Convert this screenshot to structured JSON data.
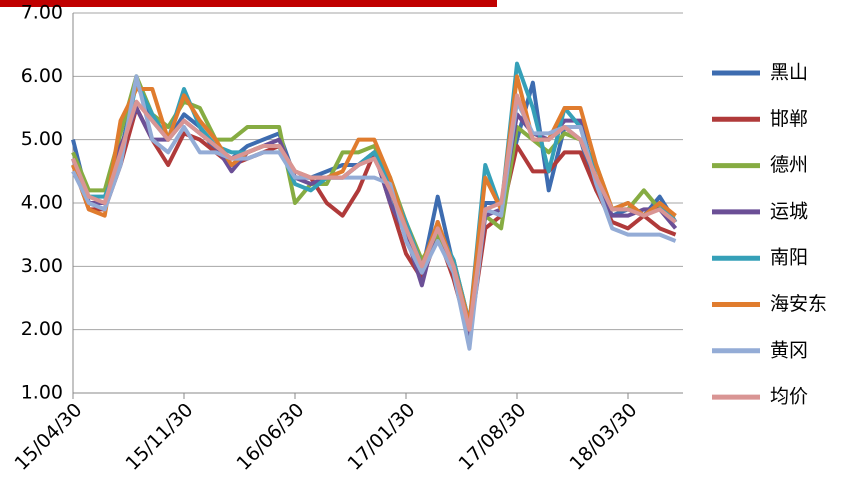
{
  "chart_data": {
    "type": "line",
    "categories": [
      "15/04/30",
      null,
      null,
      null,
      null,
      null,
      null,
      "15/11/30",
      null,
      null,
      null,
      null,
      null,
      null,
      "16/06/30",
      null,
      null,
      null,
      null,
      null,
      null,
      "17/01/30",
      null,
      null,
      null,
      null,
      null,
      null,
      "17/08/30",
      null,
      null,
      null,
      null,
      null,
      null,
      "18/03/30",
      null,
      null,
      null
    ],
    "ylim": [
      1,
      7
    ],
    "yticks": [
      {
        "value": 1,
        "label": "1.00"
      },
      {
        "value": 2,
        "label": "2.00"
      },
      {
        "value": 3,
        "label": "3.00"
      },
      {
        "value": 4,
        "label": "4.00"
      },
      {
        "value": 5,
        "label": "5.00"
      },
      {
        "value": 6,
        "label": "6.00"
      },
      {
        "value": 7,
        "label": "7.00"
      }
    ],
    "grid": true,
    "legend": "right",
    "series": [
      {
        "name": "黑山",
        "color": "#3d6cb0",
        "values": [
          5.0,
          4.0,
          3.9,
          4.8,
          5.9,
          5.3,
          5.0,
          5.4,
          5.2,
          4.8,
          4.7,
          4.9,
          5.0,
          5.1,
          4.4,
          4.4,
          4.5,
          4.6,
          4.6,
          4.8,
          4.2,
          3.5,
          2.9,
          4.1,
          3.0,
          1.8,
          4.0,
          4.0,
          5.0,
          5.9,
          4.2,
          5.2,
          5.0,
          4.2,
          3.8,
          3.9,
          3.8,
          4.1,
          3.7
        ]
      },
      {
        "name": "邯郸",
        "color": "#b03a3a",
        "values": [
          4.6,
          3.9,
          3.9,
          4.6,
          5.5,
          5.0,
          4.6,
          5.1,
          5.0,
          4.8,
          4.6,
          4.7,
          4.8,
          4.9,
          4.4,
          4.4,
          4.0,
          3.8,
          4.2,
          4.8,
          4.0,
          3.2,
          2.8,
          3.5,
          2.8,
          1.9,
          3.6,
          3.8,
          4.9,
          4.5,
          4.5,
          4.8,
          4.8,
          4.2,
          3.7,
          3.6,
          3.8,
          3.6,
          3.5
        ]
      },
      {
        "name": "德州",
        "color": "#86ac42",
        "values": [
          4.8,
          4.2,
          4.2,
          5.1,
          6.0,
          5.4,
          5.2,
          5.6,
          5.5,
          5.0,
          5.0,
          5.2,
          5.2,
          5.2,
          4.0,
          4.3,
          4.3,
          4.8,
          4.8,
          4.9,
          4.4,
          3.7,
          3.1,
          3.5,
          3.1,
          2.1,
          3.8,
          3.6,
          5.2,
          5.0,
          4.8,
          5.1,
          5.0,
          4.6,
          3.9,
          3.9,
          4.2,
          3.9,
          3.8
        ]
      },
      {
        "name": "运城",
        "color": "#6b4f96",
        "values": [
          4.7,
          4.0,
          4.0,
          4.9,
          5.5,
          5.0,
          5.0,
          5.3,
          5.1,
          4.9,
          4.5,
          4.8,
          4.9,
          5.0,
          4.4,
          4.3,
          4.4,
          4.4,
          4.6,
          4.8,
          4.0,
          3.5,
          2.7,
          3.7,
          2.9,
          1.9,
          3.8,
          3.9,
          5.4,
          5.1,
          5.0,
          5.3,
          5.3,
          4.3,
          3.8,
          3.8,
          3.9,
          3.9,
          3.6
        ]
      },
      {
        "name": "南阳",
        "color": "#35a0b8",
        "values": [
          4.6,
          4.1,
          4.1,
          4.7,
          5.9,
          5.4,
          5.0,
          5.8,
          5.2,
          4.9,
          4.8,
          4.8,
          4.9,
          4.9,
          4.3,
          4.2,
          4.4,
          4.4,
          4.6,
          4.8,
          4.3,
          3.7,
          3.0,
          3.6,
          3.1,
          2.1,
          4.6,
          3.9,
          6.2,
          5.5,
          4.5,
          5.5,
          5.2,
          4.4,
          3.9,
          4.0,
          3.8,
          4.0,
          3.7
        ]
      },
      {
        "name": "海安东",
        "color": "#e07c2e",
        "values": [
          4.6,
          3.9,
          3.8,
          5.3,
          5.8,
          5.8,
          5.0,
          5.7,
          5.3,
          5.0,
          4.6,
          4.8,
          4.9,
          4.9,
          4.5,
          4.4,
          4.4,
          4.5,
          5.0,
          5.0,
          4.4,
          3.6,
          3.0,
          3.7,
          3.0,
          2.1,
          4.4,
          3.9,
          6.0,
          5.0,
          5.0,
          5.5,
          5.5,
          4.6,
          3.9,
          4.0,
          3.8,
          4.0,
          3.8
        ]
      },
      {
        "name": "黄冈",
        "color": "#94acd6",
        "values": [
          4.5,
          4.0,
          3.9,
          4.6,
          6.0,
          5.0,
          4.8,
          5.2,
          4.8,
          4.8,
          4.7,
          4.7,
          4.8,
          4.8,
          4.4,
          4.4,
          4.4,
          4.4,
          4.4,
          4.4,
          4.3,
          3.4,
          2.9,
          3.4,
          2.9,
          1.7,
          3.9,
          3.8,
          5.6,
          5.1,
          5.1,
          5.2,
          5.2,
          4.3,
          3.6,
          3.5,
          3.5,
          3.5,
          3.4
        ]
      },
      {
        "name": "均价",
        "color": "#d99594",
        "values": [
          4.7,
          4.1,
          4.0,
          4.8,
          5.6,
          5.3,
          5.0,
          5.3,
          5.1,
          4.9,
          4.7,
          4.8,
          4.9,
          4.9,
          4.5,
          4.4,
          4.4,
          4.4,
          4.6,
          4.7,
          4.2,
          3.6,
          3.0,
          3.6,
          3.0,
          2.0,
          3.9,
          4.0,
          5.7,
          5.0,
          5.0,
          5.2,
          5.0,
          4.4,
          3.9,
          3.9,
          3.8,
          3.9,
          3.7
        ]
      }
    ]
  }
}
